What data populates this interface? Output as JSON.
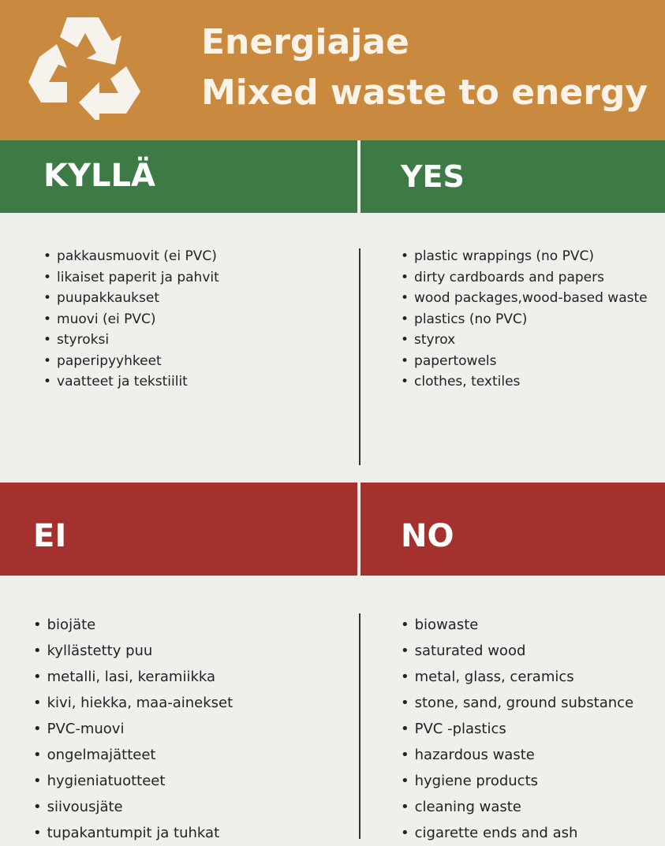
{
  "header": {
    "title_lines": [
      "Energiajae",
      "Mixed waste to energy"
    ]
  },
  "yes": {
    "fi": {
      "heading": "KYLLÄ",
      "items": [
        "pakkausmuovit (ei PVC)",
        "likaiset paperit ja pahvit",
        "puupakkaukset",
        "muovi (ei PVC)",
        "styroksi",
        "paperipyyhkeet",
        "vaatteet ja tekstiilit"
      ]
    },
    "en": {
      "heading": "YES",
      "items": [
        "plastic wrappings (no PVC)",
        "dirty cardboards and papers",
        "wood packages,wood-based waste",
        "plastics (no PVC)",
        "styrox",
        "papertowels",
        "clothes, textiles"
      ]
    }
  },
  "no": {
    "fi": {
      "heading": "EI",
      "items": [
        "biojäte",
        "kyllästetty puu",
        "metalli, lasi, keramiikka",
        "kivi, hiekka, maa-ainekset",
        "PVC-muovi",
        "ongelmajätteet",
        "hygieniatuotteet",
        "siivousjäte",
        "tupakantumpit ja tuhkat"
      ]
    },
    "en": {
      "heading": "NO",
      "items": [
        "biowaste",
        "saturated wood",
        "metal, glass, ceramics",
        "stone, sand, ground substance",
        "PVC -plastics",
        "hazardous waste",
        "hygiene products",
        "cleaning waste",
        "cigarette ends and ash"
      ]
    }
  }
}
